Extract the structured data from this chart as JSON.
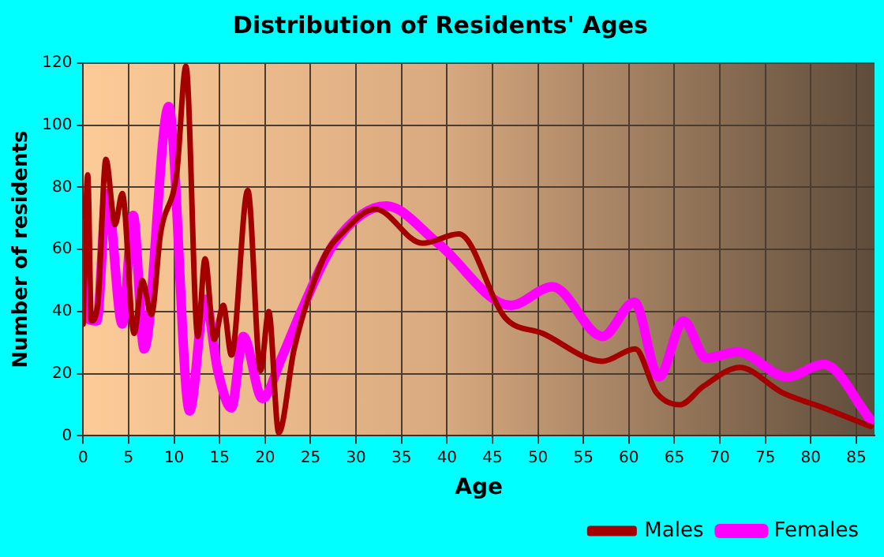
{
  "chart_data": {
    "type": "line",
    "title": "Distribution of Residents' Ages",
    "xlabel": "Age",
    "ylabel": "Number of residents",
    "xlim": [
      0,
      87
    ],
    "xticks": [
      0,
      5,
      10,
      15,
      20,
      25,
      30,
      35,
      40,
      45,
      50,
      55,
      60,
      65,
      70,
      75,
      80,
      85
    ],
    "ylim": [
      0,
      120
    ],
    "yticks": [
      0,
      20,
      40,
      60,
      80,
      100,
      120
    ],
    "grid": true,
    "legend": "bottom right",
    "marker": "none",
    "line_style": "solid",
    "series": [
      {
        "name": "Males",
        "color": "#a50000",
        "x": [
          0,
          0.5,
          0.9,
          1.6,
          2.5,
          3.5,
          4.3,
          5.6,
          6.5,
          7.5,
          8.5,
          10.3,
          11.3,
          12.6,
          13.4,
          14.4,
          15.4,
          16.3,
          18.1,
          19.5,
          20.4,
          21.5,
          23.2,
          26.4,
          28.7,
          32.1,
          37.3,
          41.3,
          46.4,
          50.5,
          57.1,
          60.7,
          63,
          65.6,
          68.2,
          72.2,
          76.8,
          81.4,
          86.6
        ],
        "values": [
          36,
          84,
          37,
          42,
          89,
          68,
          78,
          33,
          50,
          39,
          65,
          85,
          119,
          32,
          57,
          31,
          42,
          26,
          79,
          21,
          40,
          1,
          28,
          57,
          66,
          73,
          62,
          65,
          38,
          33,
          24,
          28,
          14,
          10,
          16,
          22,
          14,
          9,
          3
        ]
      },
      {
        "name": "Females",
        "color": "#ff00ff",
        "x": [
          0,
          0.4,
          1.5,
          2.6,
          4.3,
          5.5,
          6.7,
          9.4,
          11.7,
          13.4,
          14.8,
          16.3,
          17.6,
          19.7,
          21.8,
          24.1,
          27.6,
          33.3,
          39,
          47,
          51.6,
          57.1,
          60.6,
          63.3,
          66,
          68.5,
          71.9,
          77.4,
          81.4,
          86.6
        ],
        "values": [
          68,
          38,
          37,
          78,
          36,
          71,
          28,
          106,
          8,
          44,
          21,
          9,
          32,
          12,
          25,
          41,
          62,
          74,
          62,
          42,
          48,
          32,
          43,
          19,
          37,
          25,
          27,
          19,
          23,
          5
        ]
      }
    ]
  }
}
